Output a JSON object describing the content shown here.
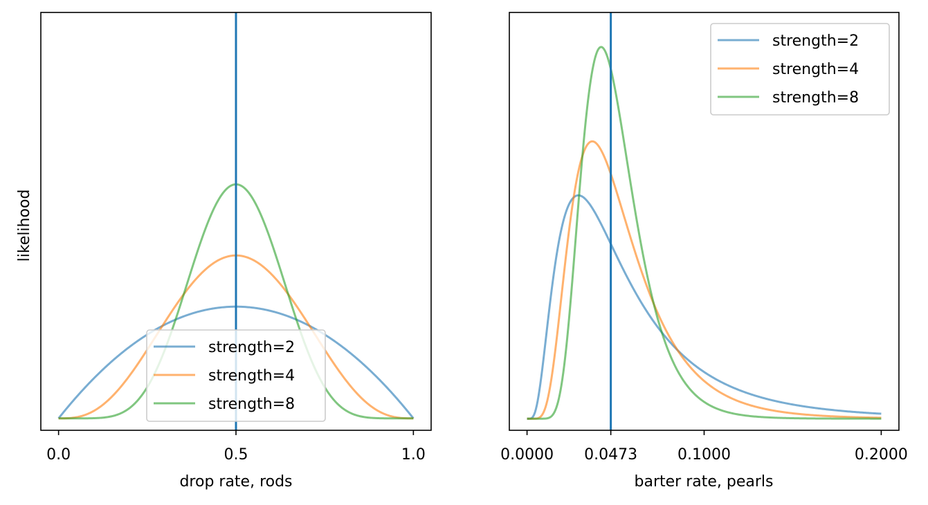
{
  "chart_data": [
    {
      "type": "line",
      "xlabel": "drop rate, rods",
      "ylabel": "likelihood",
      "xlim": [
        -0.05,
        1.05
      ],
      "ylim": [
        -0.16,
        5.45
      ],
      "xticks": [
        0.0,
        0.5,
        1.0
      ],
      "xtick_labels": [
        "0.0",
        "0.5",
        "1.0"
      ],
      "yticks_visible": false,
      "vline": {
        "x": 0.5,
        "color": "#1f77b4"
      },
      "legend_position": "lower center",
      "series": [
        {
          "name": "strength=2",
          "color": "#1f77b4",
          "distribution": "Beta(2,2)",
          "x": [
            0.0,
            0.1,
            0.2,
            0.3,
            0.4,
            0.5,
            0.6,
            0.7,
            0.8,
            0.9,
            1.0
          ],
          "values": [
            0.0,
            0.54,
            0.96,
            1.26,
            1.44,
            1.5,
            1.44,
            1.26,
            0.96,
            0.54,
            0.0
          ]
        },
        {
          "name": "strength=4",
          "color": "#ff7f0e",
          "distribution": "Beta(4,4)",
          "x": [
            0.0,
            0.1,
            0.2,
            0.3,
            0.4,
            0.5,
            0.6,
            0.7,
            0.8,
            0.9,
            1.0
          ],
          "values": [
            0.0,
            0.1,
            0.57,
            1.39,
            1.94,
            2.19,
            1.94,
            1.39,
            0.57,
            0.1,
            0.0
          ]
        },
        {
          "name": "strength=8",
          "color": "#2ca02c",
          "distribution": "Beta(8,8)",
          "x": [
            0.0,
            0.1,
            0.2,
            0.3,
            0.4,
            0.5,
            0.6,
            0.7,
            0.8,
            0.9,
            1.0
          ],
          "values": [
            0.0,
            0.0,
            0.06,
            0.82,
            2.43,
            3.14,
            2.43,
            0.82,
            0.06,
            0.0,
            0.0
          ]
        }
      ]
    },
    {
      "type": "line",
      "xlabel": "barter rate, pearls",
      "xlim": [
        -0.01,
        0.21
      ],
      "ylim": [
        -0.8,
        28.0
      ],
      "xticks": [
        0.0,
        0.0473,
        0.1,
        0.2
      ],
      "xtick_labels": [
        "0.0000",
        "0.0473",
        "0.1000",
        "0.2000"
      ],
      "yticks_visible": false,
      "vline": {
        "x": 0.0473,
        "color": "#1f77b4"
      },
      "legend_position": "upper right",
      "series": [
        {
          "name": "strength=2",
          "color": "#1f77b4",
          "distribution": "lognormal(ln 0.0473, 0.7)",
          "x": [
            0.0,
            0.01,
            0.025,
            0.035,
            0.0473,
            0.06,
            0.08,
            0.1,
            0.15,
            0.2
          ],
          "values": [
            0.0,
            3.2,
            12.5,
            11.8,
            9.9,
            7.6,
            4.6,
            2.7,
            0.6,
            0.15
          ]
        },
        {
          "name": "strength=4",
          "color": "#ff7f0e",
          "distribution": "lognormal(ln 0.0473, 0.5)",
          "x": [
            0.0,
            0.01,
            0.02,
            0.036,
            0.0473,
            0.06,
            0.08,
            0.1,
            0.15,
            0.2
          ],
          "values": [
            0.0,
            0.1,
            6.0,
            16.4,
            14.6,
            10.3,
            4.4,
            1.5,
            0.1,
            0.0
          ]
        },
        {
          "name": "strength=8",
          "color": "#2ca02c",
          "distribution": "lognormal(ln 0.0473, 0.35)",
          "x": [
            0.0,
            0.015,
            0.03,
            0.042,
            0.0473,
            0.06,
            0.08,
            0.1,
            0.15,
            0.2
          ],
          "values": [
            0.0,
            0.1,
            11.0,
            23.6,
            23.0,
            13.6,
            3.1,
            0.4,
            0.0,
            0.0
          ]
        }
      ]
    }
  ]
}
